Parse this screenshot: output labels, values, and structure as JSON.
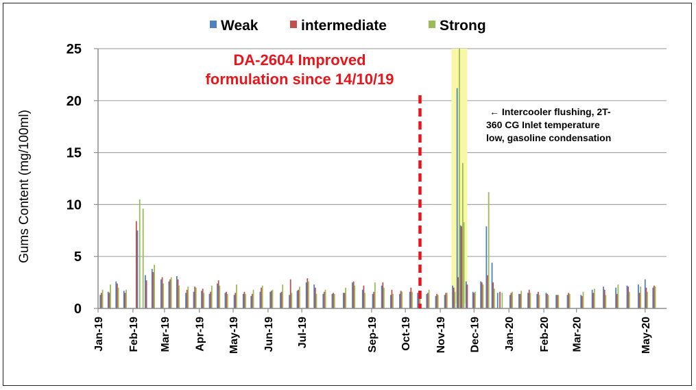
{
  "chart_data": {
    "type": "bar",
    "ylabel": "Gums Content (mg/100ml)",
    "xlabel": "",
    "ylim": [
      0,
      25
    ],
    "yticks": [
      0,
      5,
      10,
      15,
      20,
      25
    ],
    "xlim": [
      "2019-01-01",
      "2020-05-20"
    ],
    "xticks": [
      {
        "label": "Jan-19",
        "date": "2019-01-01"
      },
      {
        "label": "Feb-19",
        "date": "2019-02-01"
      },
      {
        "label": "Mar-19",
        "date": "2019-03-01"
      },
      {
        "label": "Apr-19",
        "date": "2019-04-01"
      },
      {
        "label": "May-19",
        "date": "2019-05-01"
      },
      {
        "label": "Jun-19",
        "date": "2019-06-01"
      },
      {
        "label": "Jul-19",
        "date": "2019-07-01"
      },
      {
        "label": "Sep-19",
        "date": "2019-09-01"
      },
      {
        "label": "Oct-19",
        "date": "2019-10-01"
      },
      {
        "label": "Nov-19",
        "date": "2019-11-01"
      },
      {
        "label": "Dec-19",
        "date": "2019-12-01"
      },
      {
        "label": "Jan-20",
        "date": "2020-01-01"
      },
      {
        "label": "Feb-20",
        "date": "2020-02-01"
      },
      {
        "label": "Mar-20",
        "date": "2020-03-01"
      },
      {
        "label": "May-20",
        "date": "2020-05-01"
      }
    ],
    "grid": "horizontal",
    "legend_position": "top",
    "series": [
      {
        "name": "Weak",
        "color": "#4f81bd",
        "points": [
          [
            "2019-01-03",
            1.3
          ],
          [
            "2019-01-10",
            1.6
          ],
          [
            "2019-01-17",
            2.6
          ],
          [
            "2019-01-24",
            1.7
          ],
          [
            "2019-02-05",
            7.5
          ],
          [
            "2019-02-12",
            3.2
          ],
          [
            "2019-02-18",
            3.8
          ],
          [
            "2019-02-26",
            2.8
          ],
          [
            "2019-03-05",
            2.6
          ],
          [
            "2019-03-12",
            3.1
          ],
          [
            "2019-03-20",
            1.5
          ],
          [
            "2019-03-27",
            1.6
          ],
          [
            "2019-04-03",
            1.7
          ],
          [
            "2019-04-10",
            1.4
          ],
          [
            "2019-04-17",
            2.4
          ],
          [
            "2019-04-24",
            1.5
          ],
          [
            "2019-05-02",
            1.3
          ],
          [
            "2019-05-10",
            1.4
          ],
          [
            "2019-05-17",
            1.2
          ],
          [
            "2019-05-25",
            1.6
          ],
          [
            "2019-06-03",
            1.6
          ],
          [
            "2019-06-12",
            1.5
          ],
          [
            "2019-06-20",
            1.3
          ],
          [
            "2019-06-27",
            1.7
          ],
          [
            "2019-07-05",
            2.5
          ],
          [
            "2019-07-12",
            2.3
          ],
          [
            "2019-07-20",
            1.4
          ],
          [
            "2019-07-28",
            1.4
          ],
          [
            "2019-08-07",
            1.5
          ],
          [
            "2019-08-15",
            2.5
          ],
          [
            "2019-08-24",
            1.8
          ],
          [
            "2019-09-02",
            1.4
          ],
          [
            "2019-09-10",
            2.2
          ],
          [
            "2019-09-18",
            1.3
          ],
          [
            "2019-09-26",
            1.4
          ],
          [
            "2019-10-05",
            1.6
          ],
          [
            "2019-10-12",
            1.5
          ],
          [
            "2019-10-20",
            1.4
          ],
          [
            "2019-10-28",
            1.2
          ],
          [
            "2019-11-05",
            1.3
          ],
          [
            "2019-11-12",
            2.2
          ],
          [
            "2019-11-16",
            21.2
          ],
          [
            "2019-11-19",
            8.0
          ],
          [
            "2019-11-24",
            2.6
          ],
          [
            "2019-11-30",
            1.6
          ],
          [
            "2019-12-07",
            2.6
          ],
          [
            "2019-12-12",
            7.9
          ],
          [
            "2019-12-17",
            4.4
          ],
          [
            "2019-12-22",
            1.5
          ],
          [
            "2020-01-02",
            1.3
          ],
          [
            "2020-01-10",
            1.4
          ],
          [
            "2020-01-18",
            1.5
          ],
          [
            "2020-01-26",
            1.4
          ],
          [
            "2020-02-03",
            1.5
          ],
          [
            "2020-02-12",
            1.3
          ],
          [
            "2020-02-22",
            1.3
          ],
          [
            "2020-03-05",
            1.3
          ],
          [
            "2020-03-15",
            1.8
          ],
          [
            "2020-03-25",
            2.1
          ],
          [
            "2020-04-05",
            2.0
          ],
          [
            "2020-04-15",
            2.2
          ],
          [
            "2020-04-25",
            2.3
          ],
          [
            "2020-05-01",
            2.8
          ],
          [
            "2020-05-08",
            2.0
          ]
        ]
      },
      {
        "name": "intermediate",
        "color": "#c0504d",
        "points": [
          [
            "2019-01-04",
            1.5
          ],
          [
            "2019-01-11",
            1.5
          ],
          [
            "2019-01-18",
            2.4
          ],
          [
            "2019-01-25",
            1.5
          ],
          [
            "2019-02-04",
            8.4
          ],
          [
            "2019-02-13",
            2.7
          ],
          [
            "2019-02-19",
            3.5
          ],
          [
            "2019-02-27",
            3.0
          ],
          [
            "2019-03-06",
            2.8
          ],
          [
            "2019-03-13",
            2.8
          ],
          [
            "2019-03-21",
            1.8
          ],
          [
            "2019-03-28",
            2.1
          ],
          [
            "2019-04-04",
            1.9
          ],
          [
            "2019-04-11",
            1.6
          ],
          [
            "2019-04-18",
            2.7
          ],
          [
            "2019-04-25",
            1.6
          ],
          [
            "2019-05-03",
            1.5
          ],
          [
            "2019-05-11",
            1.6
          ],
          [
            "2019-05-18",
            1.4
          ],
          [
            "2019-05-26",
            2.0
          ],
          [
            "2019-06-04",
            1.7
          ],
          [
            "2019-06-13",
            1.6
          ],
          [
            "2019-06-21",
            2.8
          ],
          [
            "2019-06-28",
            1.8
          ],
          [
            "2019-07-06",
            2.9
          ],
          [
            "2019-07-13",
            2.0
          ],
          [
            "2019-07-21",
            1.6
          ],
          [
            "2019-07-29",
            1.5
          ],
          [
            "2019-08-08",
            1.5
          ],
          [
            "2019-08-16",
            2.6
          ],
          [
            "2019-08-25",
            2.2
          ],
          [
            "2019-09-03",
            1.6
          ],
          [
            "2019-09-11",
            2.5
          ],
          [
            "2019-09-19",
            1.8
          ],
          [
            "2019-09-27",
            1.7
          ],
          [
            "2019-10-06",
            2.0
          ],
          [
            "2019-10-13",
            1.7
          ],
          [
            "2019-10-21",
            1.5
          ],
          [
            "2019-10-29",
            1.4
          ],
          [
            "2019-11-06",
            1.5
          ],
          [
            "2019-11-13",
            2.0
          ],
          [
            "2019-11-17",
            3.0
          ],
          [
            "2019-11-20",
            7.9
          ],
          [
            "2019-11-25",
            2.3
          ],
          [
            "2019-12-01",
            1.5
          ],
          [
            "2019-12-08",
            2.5
          ],
          [
            "2019-12-13",
            3.2
          ],
          [
            "2019-12-18",
            2.5
          ],
          [
            "2019-12-24",
            1.6
          ],
          [
            "2020-01-03",
            1.5
          ],
          [
            "2020-01-11",
            1.4
          ],
          [
            "2020-01-19",
            1.8
          ],
          [
            "2020-01-27",
            1.6
          ],
          [
            "2020-02-04",
            1.4
          ],
          [
            "2020-02-13",
            1.3
          ],
          [
            "2020-02-23",
            1.5
          ],
          [
            "2020-03-06",
            1.2
          ],
          [
            "2020-03-16",
            1.5
          ],
          [
            "2020-03-26",
            1.8
          ],
          [
            "2020-04-06",
            1.4
          ],
          [
            "2020-04-16",
            2.1
          ],
          [
            "2020-04-26",
            1.5
          ],
          [
            "2020-05-02",
            2.0
          ],
          [
            "2020-05-09",
            2.2
          ]
        ]
      },
      {
        "name": "Strong",
        "color": "#9bbb59",
        "points": [
          [
            "2019-01-05",
            1.8
          ],
          [
            "2019-01-12",
            2.3
          ],
          [
            "2019-01-19",
            2.0
          ],
          [
            "2019-01-26",
            1.8
          ],
          [
            "2019-02-07",
            10.5
          ],
          [
            "2019-02-10",
            9.6
          ],
          [
            "2019-02-20",
            4.2
          ],
          [
            "2019-02-28",
            2.4
          ],
          [
            "2019-03-07",
            3.0
          ],
          [
            "2019-03-14",
            2.2
          ],
          [
            "2019-03-22",
            2.1
          ],
          [
            "2019-03-29",
            2.0
          ],
          [
            "2019-04-05",
            1.5
          ],
          [
            "2019-04-12",
            2.2
          ],
          [
            "2019-04-19",
            2.2
          ],
          [
            "2019-04-26",
            1.4
          ],
          [
            "2019-05-04",
            2.3
          ],
          [
            "2019-05-12",
            1.4
          ],
          [
            "2019-05-19",
            1.8
          ],
          [
            "2019-05-27",
            2.2
          ],
          [
            "2019-06-05",
            1.8
          ],
          [
            "2019-06-14",
            2.3
          ],
          [
            "2019-06-22",
            1.5
          ],
          [
            "2019-06-29",
            2.1
          ],
          [
            "2019-07-07",
            2.6
          ],
          [
            "2019-07-14",
            1.4
          ],
          [
            "2019-07-22",
            1.8
          ],
          [
            "2019-07-30",
            1.4
          ],
          [
            "2019-08-09",
            2.0
          ],
          [
            "2019-08-17",
            2.2
          ],
          [
            "2019-08-26",
            1.5
          ],
          [
            "2019-09-04",
            2.5
          ],
          [
            "2019-09-12",
            2.0
          ],
          [
            "2019-09-20",
            1.4
          ],
          [
            "2019-09-28",
            1.6
          ],
          [
            "2019-10-07",
            1.6
          ],
          [
            "2019-10-14",
            1.5
          ],
          [
            "2019-10-22",
            1.8
          ],
          [
            "2019-10-30",
            1.3
          ],
          [
            "2019-11-07",
            1.5
          ],
          [
            "2019-11-14",
            1.6
          ],
          [
            "2019-11-18",
            25.0
          ],
          [
            "2019-11-21",
            14.0
          ],
          [
            "2019-11-22",
            8.3
          ],
          [
            "2019-12-02",
            1.6
          ],
          [
            "2019-12-09",
            2.3
          ],
          [
            "2019-12-14",
            11.2
          ],
          [
            "2019-12-19",
            1.9
          ],
          [
            "2019-12-26",
            1.5
          ],
          [
            "2020-01-04",
            1.6
          ],
          [
            "2020-01-12",
            1.7
          ],
          [
            "2020-01-20",
            1.5
          ],
          [
            "2020-01-28",
            1.3
          ],
          [
            "2020-02-05",
            1.3
          ],
          [
            "2020-02-14",
            1.3
          ],
          [
            "2020-02-24",
            1.4
          ],
          [
            "2020-03-07",
            1.6
          ],
          [
            "2020-03-17",
            1.9
          ],
          [
            "2020-03-27",
            1.3
          ],
          [
            "2020-04-07",
            2.3
          ],
          [
            "2020-04-17",
            1.6
          ],
          [
            "2020-04-27",
            2.1
          ],
          [
            "2020-05-03",
            1.6
          ],
          [
            "2020-05-10",
            2.1
          ]
        ]
      }
    ],
    "annotations": {
      "improvement_line_date": "2019-10-14",
      "improvement_text": [
        "DA-2604 Improved",
        "formulation since 14/10/19"
      ],
      "highlight_range": [
        "2019-11-11",
        "2019-11-25"
      ],
      "flushing_text": [
        "← Intercooler flushing, 2T-",
        "360 CG Inlet temperature",
        "low, gasoline condensation"
      ],
      "improvement_color": "#e8151b",
      "highlight_color": "#f7f7a6"
    }
  }
}
